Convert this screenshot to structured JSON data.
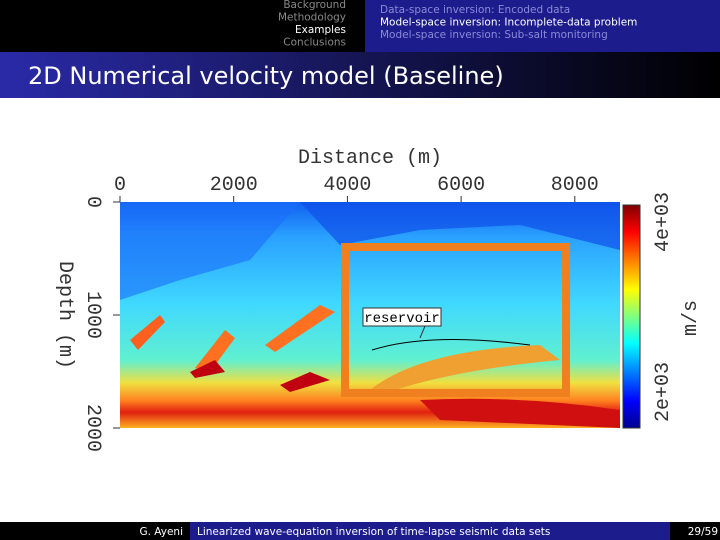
{
  "header": {
    "sections": [
      "Background",
      "Methodology",
      "Examples",
      "Conclusions"
    ],
    "subsections": [
      "Data-space inversion: Encoded data",
      "Model-space inversion: Incomplete-data problem",
      "Model-space inversion: Sub-salt monitoring"
    ]
  },
  "slide": {
    "title": "2D Numerical velocity model (Baseline)"
  },
  "figure": {
    "x_label": "Distance (m)",
    "x_ticks": [
      "0",
      "2000",
      "4000",
      "6000",
      "8000"
    ],
    "y_label": "Depth (m)",
    "y_ticks": [
      "0",
      "1000",
      "2000"
    ],
    "colorbar_ticks": [
      "4e+03",
      "2e+03"
    ],
    "colorbar_label": "m/s",
    "annotation": "reservoir"
  },
  "footer": {
    "author": "G. Ayeni",
    "talk": "Linearized wave-equation inversion of time-lapse seismic data sets",
    "page": "29/59"
  }
}
